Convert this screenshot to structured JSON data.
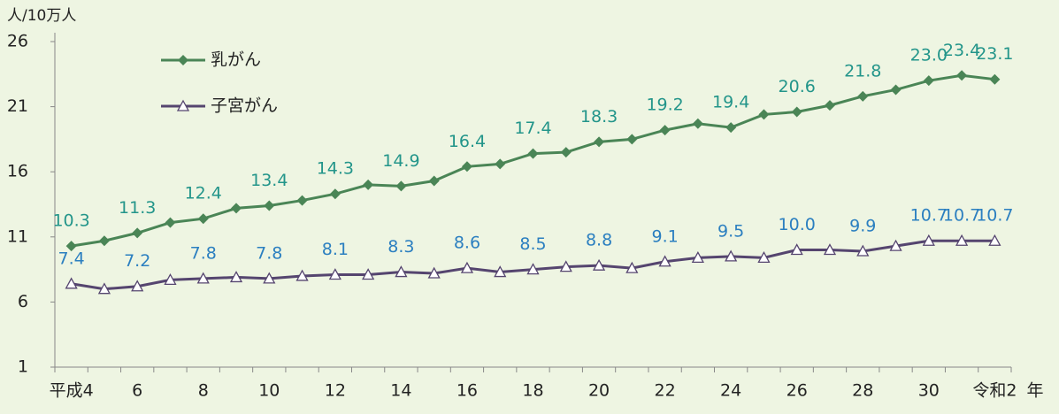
{
  "chart_data": {
    "type": "line",
    "y_label": "人/10万人",
    "x_label": "年",
    "categories": [
      "平成4",
      null,
      "6",
      null,
      "8",
      null,
      "10",
      null,
      "12",
      null,
      "14",
      null,
      "16",
      null,
      "18",
      null,
      "20",
      null,
      "22",
      null,
      "24",
      null,
      "26",
      null,
      "28",
      null,
      "30",
      null,
      "令和2"
    ],
    "series": [
      {
        "name": "乳がん",
        "color": "#4a8556",
        "label_color": "#23958a",
        "marker": "diamond",
        "values": [
          10.3,
          10.7,
          11.3,
          12.1,
          12.4,
          13.2,
          13.4,
          13.8,
          14.3,
          15.0,
          14.9,
          15.3,
          16.4,
          16.6,
          17.4,
          17.5,
          18.3,
          18.5,
          19.2,
          19.7,
          19.4,
          20.4,
          20.6,
          21.1,
          21.8,
          22.3,
          23.0,
          23.4,
          23.1
        ],
        "value_labels": [
          "10.3",
          null,
          "11.3",
          null,
          "12.4",
          null,
          "13.4",
          null,
          "14.3",
          null,
          "14.9",
          null,
          "16.4",
          null,
          "17.4",
          null,
          "18.3",
          null,
          "19.2",
          null,
          "19.4",
          null,
          "20.6",
          null,
          "21.8",
          null,
          "23.0",
          "23.4",
          "23.1"
        ]
      },
      {
        "name": "子宮がん",
        "color": "#55456f",
        "label_color": "#2b7fc0",
        "marker": "triangle",
        "values": [
          7.4,
          7.0,
          7.2,
          7.7,
          7.8,
          7.9,
          7.8,
          8.0,
          8.1,
          8.1,
          8.3,
          8.2,
          8.6,
          8.3,
          8.5,
          8.7,
          8.8,
          8.6,
          9.1,
          9.4,
          9.5,
          9.4,
          10.0,
          10.0,
          9.9,
          10.3,
          10.7,
          10.7,
          10.7
        ],
        "value_labels": [
          "7.4",
          null,
          "7.2",
          null,
          "7.8",
          null,
          "7.8",
          null,
          "8.1",
          null,
          "8.3",
          null,
          "8.6",
          null,
          "8.5",
          null,
          "8.8",
          null,
          "9.1",
          null,
          "9.5",
          null,
          "10.0",
          null,
          "9.9",
          null,
          "10.7",
          "10.7",
          "10.7"
        ]
      }
    ],
    "ylim": [
      1,
      26
    ],
    "yticks": [
      1,
      6,
      11,
      16,
      21,
      26
    ],
    "grid": false
  }
}
